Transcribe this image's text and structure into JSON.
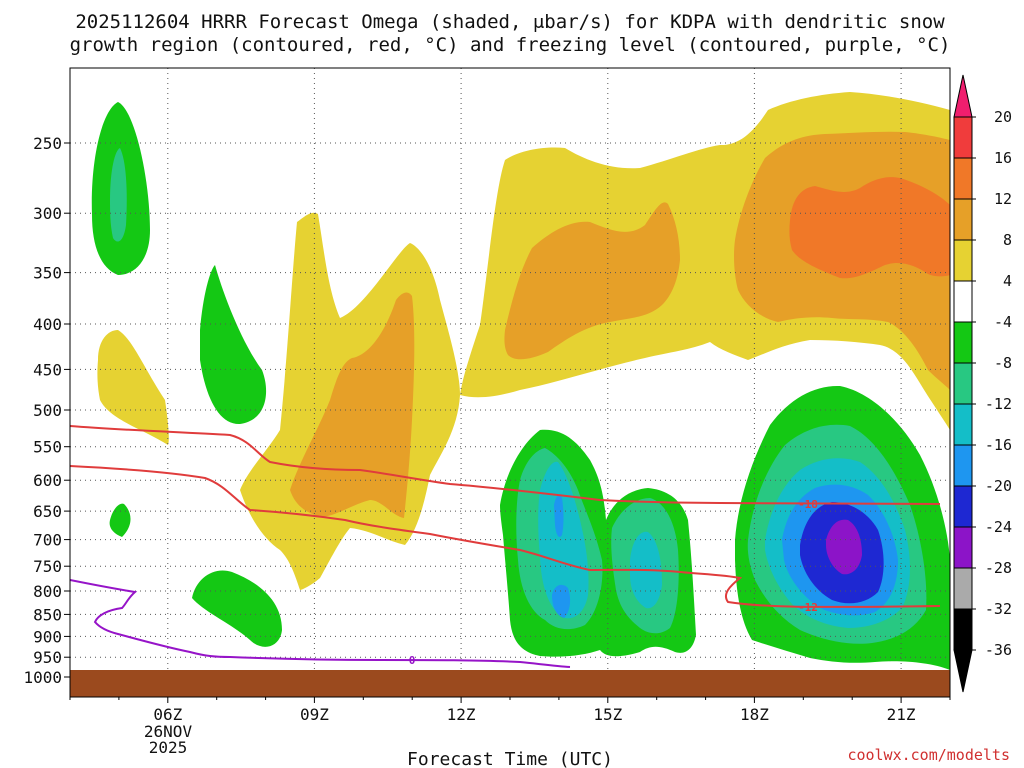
{
  "chart_data": {
    "type": "contour",
    "title_line1": "2025112604 HRRR Forecast Omega (shaded, μbar/s) for KDPA with dendritic snow",
    "title_line2": "growth region (contoured, red, °C) and freezing level (contoured, purple, °C)",
    "xlabel": "Forecast Time (UTC)",
    "credit": "coolwx.com/modelts",
    "date_label": [
      "26NOV",
      "2025"
    ],
    "x_ticks": [
      {
        "hour": 6,
        "label": "06Z"
      },
      {
        "hour": 9,
        "label": "09Z"
      },
      {
        "hour": 12,
        "label": "12Z"
      },
      {
        "hour": 15,
        "label": "15Z"
      },
      {
        "hour": 18,
        "label": "18Z"
      },
      {
        "hour": 21,
        "label": "21Z"
      }
    ],
    "xlim_hours": [
      4,
      22
    ],
    "y_ticks": [
      250,
      300,
      350,
      400,
      450,
      500,
      550,
      600,
      650,
      700,
      750,
      800,
      850,
      900,
      950,
      1000
    ],
    "ylim_mb": [
      200,
      1000
    ],
    "colorbar": {
      "labels": [
        "20",
        "16",
        "12",
        "8",
        "4",
        "-4",
        "-8",
        "-12",
        "-16",
        "-20",
        "-24",
        "-28",
        "-32",
        "-36"
      ],
      "colors": [
        "#f01e6e",
        "#f03c3c",
        "#f07828",
        "#e6a028",
        "#e6d232",
        "#ffffff",
        "#14c814",
        "#28c882",
        "#14bec8",
        "#1e96f0",
        "#1e28d2",
        "#8c14c8",
        "#aaaaaa",
        "#000000"
      ]
    },
    "contours": [
      {
        "name": "dendritic-min",
        "value": -18,
        "label": "-18",
        "color": "#e03c3c"
      },
      {
        "name": "dendritic-max",
        "value": -12,
        "label": "-12",
        "color": "#e03c3c"
      },
      {
        "name": "freezing",
        "value": 0,
        "label": "0",
        "color": "#9614c8"
      }
    ],
    "ground_color": "#9b4a1e"
  }
}
